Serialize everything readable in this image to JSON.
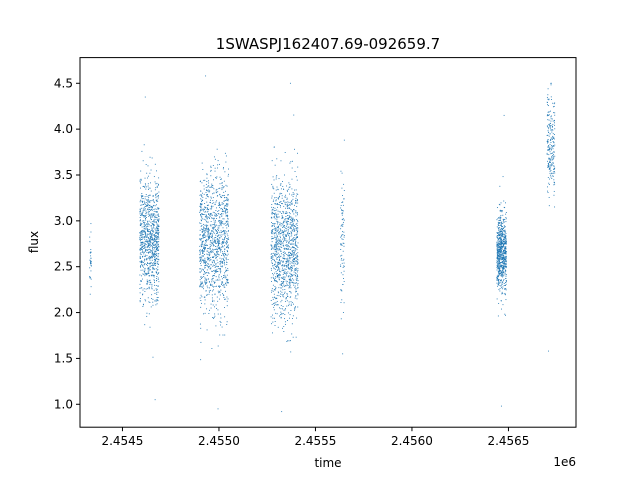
{
  "chart_data": {
    "type": "scatter",
    "title": "1SWASPJ162407.69-092659.7",
    "xlabel": "time",
    "ylabel": "flux",
    "x_offset_label": "1e6",
    "xlim": [
      2.45428,
      2.45685
    ],
    "ylim": [
      0.75,
      4.78
    ],
    "x_ticks": [
      {
        "value": 2.4545,
        "label": "2.4545"
      },
      {
        "value": 2.455,
        "label": "2.4550"
      },
      {
        "value": 2.4555,
        "label": "2.4555"
      },
      {
        "value": 2.456,
        "label": "2.4560"
      },
      {
        "value": 2.4565,
        "label": "2.4565"
      }
    ],
    "y_ticks": [
      {
        "value": 1.0,
        "label": "1.0"
      },
      {
        "value": 1.5,
        "label": "1.5"
      },
      {
        "value": 2.0,
        "label": "2.0"
      },
      {
        "value": 2.5,
        "label": "2.5"
      },
      {
        "value": 3.0,
        "label": "3.0"
      },
      {
        "value": 3.5,
        "label": "3.5"
      },
      {
        "value": 4.0,
        "label": "4.0"
      },
      {
        "value": 4.5,
        "label": "4.5"
      }
    ],
    "grid": false,
    "marker_color": "#1f77b4",
    "point_clusters": [
      {
        "x_start": 2.45433,
        "x_end": 2.45434,
        "center": 2.6,
        "spread": 0.2,
        "min": 2.2,
        "max": 2.97,
        "count": 30
      },
      {
        "x_start": 2.45459,
        "x_end": 2.45469,
        "center": 2.8,
        "spread": 0.32,
        "min": 1.05,
        "max": 4.35,
        "count": 900
      },
      {
        "x_start": 2.4549,
        "x_end": 2.45505,
        "center": 2.75,
        "spread": 0.38,
        "min": 0.95,
        "max": 4.58,
        "count": 1100
      },
      {
        "x_start": 2.45527,
        "x_end": 2.45541,
        "center": 2.7,
        "spread": 0.38,
        "min": 0.92,
        "max": 4.5,
        "count": 1100
      },
      {
        "x_start": 2.45563,
        "x_end": 2.45565,
        "center": 2.7,
        "spread": 0.35,
        "min": 1.55,
        "max": 3.88,
        "count": 80
      },
      {
        "x_start": 2.45644,
        "x_end": 2.45649,
        "center": 2.65,
        "spread": 0.22,
        "min": 0.98,
        "max": 4.15,
        "count": 700
      },
      {
        "x_start": 2.4567,
        "x_end": 2.45674,
        "center": 3.85,
        "spread": 0.25,
        "min": 1.58,
        "max": 4.5,
        "count": 220
      }
    ]
  }
}
